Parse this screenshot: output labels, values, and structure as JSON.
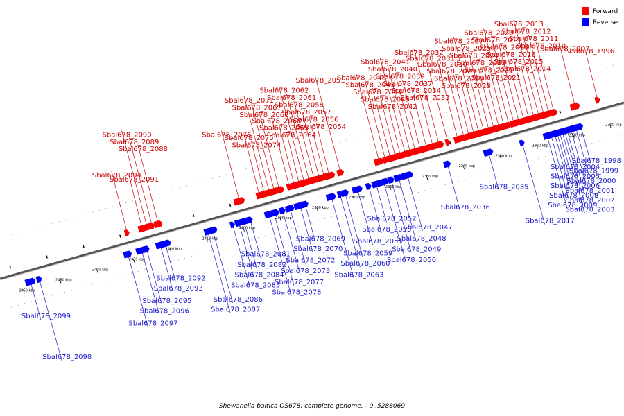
{
  "caption": "Shewanella baltica OS678, complete genome. - 0..5288069",
  "legend": [
    {
      "label": "Forward",
      "color": "#ff0000"
    },
    {
      "label": "Reverse",
      "color": "#0000ff"
    }
  ],
  "colors": {
    "forward": "#ff0000",
    "forward_label": "#cc0000",
    "reverse": "#0000ff",
    "reverse_label": "#1a1acc",
    "backbone": "#888888"
  },
  "ticks": [
    "2300 kbp",
    "2310 kbp",
    "2320 kbp",
    "2330 kbp",
    "2340 kbp",
    "2350 kbp",
    "2360 kbp",
    "2370 kbp",
    "2380 kbp",
    "2390 kbp",
    "2400 kbp",
    "2410 kbp",
    "2420 kbp",
    "2430 kbp",
    "2440 kbp",
    "2450 kbp",
    "2460 kbp"
  ],
  "forward_genes": [
    {
      "name": "Sbal678_1996",
      "pos": 0.038
    },
    {
      "name": "Sbal678_2007",
      "pos": 0.074
    },
    {
      "name": "Sbal678_2010",
      "pos": 0.108
    },
    {
      "name": "Sbal678_2011",
      "pos": 0.116
    },
    {
      "name": "Sbal678_2012",
      "pos": 0.124
    },
    {
      "name": "Sbal678_2013",
      "pos": 0.132
    },
    {
      "name": "Sbal678_2014",
      "pos": 0.14
    },
    {
      "name": "Sbal678_2015",
      "pos": 0.148
    },
    {
      "name": "Sbal678_2016",
      "pos": 0.156
    },
    {
      "name": "Sbal678_2018",
      "pos": 0.164
    },
    {
      "name": "Sbal678_2019",
      "pos": 0.172
    },
    {
      "name": "Sbal678_2020",
      "pos": 0.18
    },
    {
      "name": "Sbal678_2021",
      "pos": 0.188
    },
    {
      "name": "Sbal678_2022",
      "pos": 0.196
    },
    {
      "name": "Sbal678_2023",
      "pos": 0.204
    },
    {
      "name": "Sbal678_2024",
      "pos": 0.212
    },
    {
      "name": "Sbal678_2025",
      "pos": 0.22
    },
    {
      "name": "Sbal678_2027",
      "pos": 0.228
    },
    {
      "name": "Sbal678_2028",
      "pos": 0.236
    },
    {
      "name": "Sbal678_2026",
      "pos": 0.244
    },
    {
      "name": "Sbal678_2029",
      "pos": 0.252
    },
    {
      "name": "Sbal678_2030",
      "pos": 0.262
    },
    {
      "name": "Sbal678_2031",
      "pos": 0.278
    },
    {
      "name": "Sbal678_2032",
      "pos": 0.292
    },
    {
      "name": "Sbal678_2033",
      "pos": 0.302
    },
    {
      "name": "Sbal678_2034",
      "pos": 0.312
    },
    {
      "name": "Sbal678_2037",
      "pos": 0.322
    },
    {
      "name": "Sbal678_2039",
      "pos": 0.33
    },
    {
      "name": "Sbal678_2040",
      "pos": 0.338
    },
    {
      "name": "Sbal678_2041",
      "pos": 0.346
    },
    {
      "name": "Sbal678_2042",
      "pos": 0.354
    },
    {
      "name": "Sbal678_2045",
      "pos": 0.362
    },
    {
      "name": "Sbal678_2044",
      "pos": 0.37
    },
    {
      "name": "Sbal678_2043",
      "pos": 0.378
    },
    {
      "name": "Sbal678_2046",
      "pos": 0.388
    },
    {
      "name": "Sbal678_2051",
      "pos": 0.45
    },
    {
      "name": "Sbal678_2054",
      "pos": 0.468
    },
    {
      "name": "Sbal678_2056",
      "pos": 0.476
    },
    {
      "name": "Sbal678_2057",
      "pos": 0.484
    },
    {
      "name": "Sbal678_2058",
      "pos": 0.492
    },
    {
      "name": "Sbal678_2061",
      "pos": 0.5
    },
    {
      "name": "Sbal678_2062",
      "pos": 0.508
    },
    {
      "name": "Sbal678_2064",
      "pos": 0.516
    },
    {
      "name": "Sbal678_2065",
      "pos": 0.524
    },
    {
      "name": "Sbal678_2068",
      "pos": 0.532
    },
    {
      "name": "Sbal678_2066",
      "pos": 0.548
    },
    {
      "name": "Sbal678_2067",
      "pos": 0.556
    },
    {
      "name": "Sbal678_2071",
      "pos": 0.564
    },
    {
      "name": "Sbal678_2074",
      "pos": 0.572
    },
    {
      "name": "Sbal678_2075",
      "pos": 0.58
    },
    {
      "name": "Sbal678_2076",
      "pos": 0.612
    },
    {
      "name": "Sbal678_2088",
      "pos": 0.742
    },
    {
      "name": "Sbal678_2089",
      "pos": 0.752
    },
    {
      "name": "Sbal678_2090",
      "pos": 0.76
    },
    {
      "name": "Sbal678_2091",
      "pos": 0.768
    },
    {
      "name": "Sbal678_2094",
      "pos": 0.792
    }
  ],
  "reverse_genes": [
    {
      "name": "Sbal678_1998",
      "pos": 0.074
    },
    {
      "name": "Sbal678_1999",
      "pos": 0.082
    },
    {
      "name": "Sbal678_2000",
      "pos": 0.09
    },
    {
      "name": "Sbal678_2001",
      "pos": 0.096
    },
    {
      "name": "Sbal678_2002",
      "pos": 0.1
    },
    {
      "name": "Sbal678_2003",
      "pos": 0.104
    },
    {
      "name": "Sbal678_2004",
      "pos": 0.108
    },
    {
      "name": "Sbal678_2005",
      "pos": 0.112
    },
    {
      "name": "Sbal678_2006",
      "pos": 0.116
    },
    {
      "name": "Sbal678_2008",
      "pos": 0.122
    },
    {
      "name": "Sbal678_2009",
      "pos": 0.128
    },
    {
      "name": "Sbal678_2017",
      "pos": 0.168
    },
    {
      "name": "Sbal678_2035",
      "pos": 0.222
    },
    {
      "name": "Sbal678_2036",
      "pos": 0.288
    },
    {
      "name": "Sbal678_2047",
      "pos": 0.352
    },
    {
      "name": "Sbal678_2048",
      "pos": 0.366
    },
    {
      "name": "Sbal678_2049",
      "pos": 0.378
    },
    {
      "name": "Sbal678_2050",
      "pos": 0.39
    },
    {
      "name": "Sbal678_2052",
      "pos": 0.402
    },
    {
      "name": "Sbal678_2053",
      "pos": 0.414
    },
    {
      "name": "Sbal678_2055",
      "pos": 0.432
    },
    {
      "name": "Sbal678_2059",
      "pos": 0.452
    },
    {
      "name": "Sbal678_2060",
      "pos": 0.46
    },
    {
      "name": "Sbal678_2063",
      "pos": 0.474
    },
    {
      "name": "Sbal678_2069",
      "pos": 0.516
    },
    {
      "name": "Sbal678_2070",
      "pos": 0.524
    },
    {
      "name": "Sbal678_2072",
      "pos": 0.54
    },
    {
      "name": "Sbal678_2073",
      "pos": 0.552
    },
    {
      "name": "Sbal678_2077",
      "pos": 0.566
    },
    {
      "name": "Sbal678_2078",
      "pos": 0.574
    },
    {
      "name": "Sbal678_2081",
      "pos": 0.604
    },
    {
      "name": "Sbal678_2082",
      "pos": 0.614
    },
    {
      "name": "Sbal678_2084",
      "pos": 0.622
    },
    {
      "name": "Sbal678_2085",
      "pos": 0.632
    },
    {
      "name": "Sbal678_2086",
      "pos": 0.664
    },
    {
      "name": "Sbal678_2087",
      "pos": 0.672
    },
    {
      "name": "Sbal678_2092",
      "pos": 0.74
    },
    {
      "name": "Sbal678_2093",
      "pos": 0.748
    },
    {
      "name": "Sbal678_2095",
      "pos": 0.77
    },
    {
      "name": "Sbal678_2096",
      "pos": 0.778
    },
    {
      "name": "Sbal678_2097",
      "pos": 0.8
    },
    {
      "name": "Sbal678_2098",
      "pos": 0.942
    },
    {
      "name": "Sbal678_2099",
      "pos": 0.956
    }
  ]
}
